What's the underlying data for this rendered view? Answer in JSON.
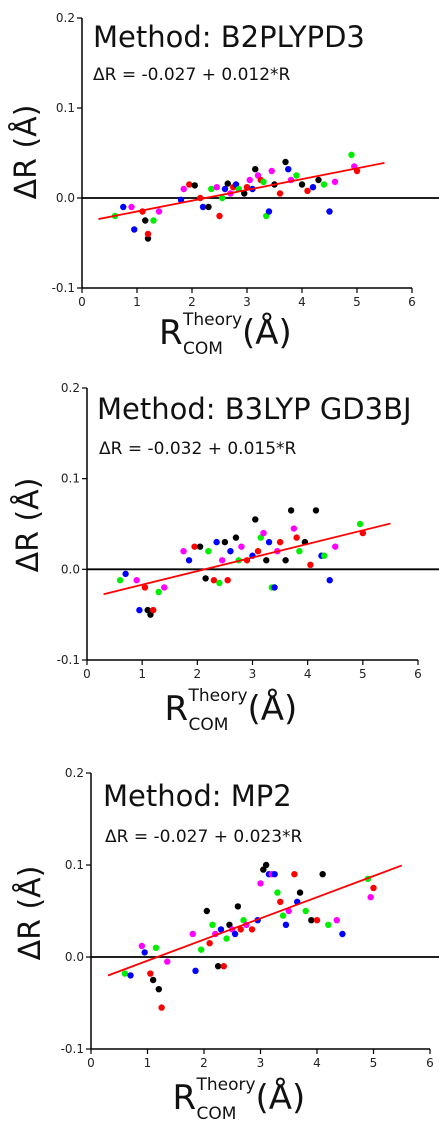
{
  "chart_data": [
    {
      "type": "scatter",
      "title": "Method: B2PLYPD3",
      "equation": "ΔR = -0.027 + 0.012*R",
      "ylabel": "ΔR (Å)",
      "xlabel_main": "R",
      "xlabel_sup": "Theory",
      "xlabel_sub": "COM",
      "xlabel_unit": "(Å)",
      "xlim": [
        0,
        6
      ],
      "ylim": [
        -0.1,
        0.2
      ],
      "xticks": [
        "0",
        "1",
        "2",
        "3",
        "4",
        "5",
        "6"
      ],
      "yticks": [
        "-0.1",
        "0.0",
        "0.1",
        "0.2"
      ],
      "zero_line": 0,
      "fit": {
        "intercept": -0.027,
        "slope": 0.012,
        "x_range": [
          0.3,
          5.5
        ],
        "color": "#ff0000"
      },
      "series_colors": [
        "#000000",
        "#ff0000",
        "#00ee00",
        "#0000ff",
        "#ff00ff"
      ],
      "points": [
        [
          0.6,
          -0.02,
          2
        ],
        [
          0.75,
          -0.01,
          3
        ],
        [
          0.9,
          -0.01,
          4
        ],
        [
          0.95,
          -0.035,
          3
        ],
        [
          1.1,
          -0.015,
          1
        ],
        [
          1.15,
          -0.025,
          0
        ],
        [
          1.2,
          -0.045,
          0
        ],
        [
          1.2,
          -0.04,
          1
        ],
        [
          1.3,
          -0.025,
          2
        ],
        [
          1.4,
          -0.015,
          4
        ],
        [
          1.8,
          -0.002,
          3
        ],
        [
          1.85,
          0.01,
          4
        ],
        [
          1.95,
          0.015,
          1
        ],
        [
          2.05,
          0.014,
          0
        ],
        [
          2.15,
          0.0,
          1
        ],
        [
          2.2,
          -0.01,
          3
        ],
        [
          2.3,
          -0.01,
          0
        ],
        [
          2.35,
          0.01,
          2
        ],
        [
          2.45,
          0.012,
          4
        ],
        [
          2.5,
          -0.02,
          1
        ],
        [
          2.55,
          0.0,
          2
        ],
        [
          2.6,
          0.01,
          3
        ],
        [
          2.65,
          0.016,
          0
        ],
        [
          2.7,
          0.005,
          4
        ],
        [
          2.75,
          0.012,
          1
        ],
        [
          2.8,
          0.015,
          3
        ],
        [
          2.85,
          0.01,
          2
        ],
        [
          2.95,
          0.005,
          0
        ],
        [
          3.0,
          0.012,
          1
        ],
        [
          3.05,
          0.02,
          4
        ],
        [
          3.1,
          0.01,
          3
        ],
        [
          3.15,
          0.032,
          0
        ],
        [
          3.2,
          0.025,
          4
        ],
        [
          3.25,
          0.02,
          1
        ],
        [
          3.3,
          0.018,
          2
        ],
        [
          3.35,
          -0.02,
          2
        ],
        [
          3.4,
          -0.015,
          3
        ],
        [
          3.45,
          0.03,
          4
        ],
        [
          3.5,
          0.015,
          0
        ],
        [
          3.6,
          0.005,
          1
        ],
        [
          3.7,
          0.04,
          0
        ],
        [
          3.75,
          0.032,
          3
        ],
        [
          3.8,
          0.02,
          4
        ],
        [
          3.9,
          0.025,
          2
        ],
        [
          4.0,
          0.015,
          0
        ],
        [
          4.1,
          0.008,
          1
        ],
        [
          4.2,
          0.012,
          3
        ],
        [
          4.3,
          0.02,
          0
        ],
        [
          4.4,
          0.015,
          2
        ],
        [
          4.5,
          -0.015,
          3
        ],
        [
          4.6,
          0.018,
          4
        ],
        [
          4.9,
          0.048,
          2
        ],
        [
          4.95,
          0.035,
          4
        ],
        [
          5.0,
          0.03,
          1
        ]
      ]
    },
    {
      "type": "scatter",
      "title": "Method: B3LYP GD3BJ",
      "equation": "ΔR = -0.032 + 0.015*R",
      "ylabel": "ΔR (Å)",
      "xlabel_main": "R",
      "xlabel_sup": "Theory",
      "xlabel_sub": "COM",
      "xlabel_unit": "(Å)",
      "xlim": [
        0,
        6
      ],
      "ylim": [
        -0.1,
        0.2
      ],
      "xticks": [
        "0",
        "1",
        "2",
        "3",
        "4",
        "5",
        "6"
      ],
      "yticks": [
        "-0.1",
        "0.0",
        "0.1",
        "0.2"
      ],
      "zero_line": 0,
      "fit": {
        "intercept": -0.032,
        "slope": 0.015,
        "x_range": [
          0.3,
          5.5
        ],
        "color": "#ff0000"
      },
      "series_colors": [
        "#000000",
        "#ff0000",
        "#00ee00",
        "#0000ff",
        "#ff00ff"
      ],
      "points": [
        [
          0.6,
          -0.012,
          2
        ],
        [
          0.7,
          -0.005,
          3
        ],
        [
          0.9,
          -0.012,
          4
        ],
        [
          0.95,
          -0.045,
          3
        ],
        [
          1.05,
          -0.02,
          1
        ],
        [
          1.1,
          -0.045,
          0
        ],
        [
          1.15,
          -0.05,
          0
        ],
        [
          1.2,
          -0.045,
          1
        ],
        [
          1.3,
          -0.025,
          2
        ],
        [
          1.4,
          -0.02,
          4
        ],
        [
          1.75,
          0.02,
          4
        ],
        [
          1.85,
          0.01,
          3
        ],
        [
          1.95,
          0.025,
          1
        ],
        [
          2.05,
          0.025,
          0
        ],
        [
          2.15,
          -0.01,
          0
        ],
        [
          2.2,
          0.02,
          2
        ],
        [
          2.3,
          -0.012,
          1
        ],
        [
          2.35,
          0.03,
          3
        ],
        [
          2.4,
          -0.015,
          2
        ],
        [
          2.45,
          0.01,
          4
        ],
        [
          2.5,
          0.03,
          0
        ],
        [
          2.55,
          -0.012,
          1
        ],
        [
          2.6,
          0.02,
          3
        ],
        [
          2.7,
          0.035,
          0
        ],
        [
          2.75,
          0.01,
          2
        ],
        [
          2.8,
          0.025,
          4
        ],
        [
          2.9,
          0.01,
          1
        ],
        [
          3.0,
          0.015,
          3
        ],
        [
          3.05,
          0.055,
          0
        ],
        [
          3.1,
          0.02,
          1
        ],
        [
          3.15,
          0.035,
          2
        ],
        [
          3.2,
          0.04,
          4
        ],
        [
          3.25,
          0.01,
          0
        ],
        [
          3.3,
          0.03,
          3
        ],
        [
          3.35,
          -0.02,
          2
        ],
        [
          3.4,
          -0.02,
          3
        ],
        [
          3.45,
          0.02,
          4
        ],
        [
          3.5,
          0.03,
          1
        ],
        [
          3.6,
          0.01,
          0
        ],
        [
          3.7,
          0.065,
          0
        ],
        [
          3.75,
          0.045,
          4
        ],
        [
          3.8,
          0.035,
          1
        ],
        [
          3.85,
          0.02,
          2
        ],
        [
          3.95,
          0.03,
          0
        ],
        [
          4.05,
          0.005,
          1
        ],
        [
          4.15,
          0.065,
          0
        ],
        [
          4.25,
          0.015,
          3
        ],
        [
          4.3,
          0.015,
          2
        ],
        [
          4.4,
          -0.012,
          3
        ],
        [
          4.5,
          0.025,
          4
        ],
        [
          4.95,
          0.05,
          2
        ],
        [
          5.0,
          0.04,
          1
        ]
      ]
    },
    {
      "type": "scatter",
      "title": "Method: MP2",
      "equation": "ΔR = -0.027 + 0.023*R",
      "ylabel": "ΔR (Å)",
      "xlabel_main": "R",
      "xlabel_sup": "Theory",
      "xlabel_sub": "COM",
      "xlabel_unit": "(Å)",
      "xlim": [
        0,
        6
      ],
      "ylim": [
        -0.1,
        0.2
      ],
      "xticks": [
        "0",
        "1",
        "2",
        "3",
        "4",
        "5",
        "6"
      ],
      "yticks": [
        "-0.1",
        "0.0",
        "0.1",
        "0.2"
      ],
      "zero_line": 0,
      "fit": {
        "intercept": -0.027,
        "slope": 0.023,
        "x_range": [
          0.3,
          5.5
        ],
        "color": "#ff0000"
      },
      "series_colors": [
        "#000000",
        "#ff0000",
        "#00ee00",
        "#0000ff",
        "#ff00ff"
      ],
      "points": [
        [
          0.6,
          -0.018,
          2
        ],
        [
          0.7,
          -0.02,
          3
        ],
        [
          0.9,
          0.012,
          4
        ],
        [
          0.95,
          0.005,
          3
        ],
        [
          1.05,
          -0.018,
          1
        ],
        [
          1.1,
          -0.025,
          0
        ],
        [
          1.15,
          0.01,
          2
        ],
        [
          1.2,
          -0.035,
          0
        ],
        [
          1.25,
          -0.055,
          1
        ],
        [
          1.35,
          -0.005,
          4
        ],
        [
          1.8,
          0.025,
          4
        ],
        [
          1.85,
          -0.015,
          3
        ],
        [
          1.95,
          0.008,
          2
        ],
        [
          2.05,
          0.05,
          0
        ],
        [
          2.1,
          0.015,
          1
        ],
        [
          2.15,
          0.035,
          2
        ],
        [
          2.2,
          0.025,
          4
        ],
        [
          2.25,
          -0.01,
          0
        ],
        [
          2.3,
          0.03,
          3
        ],
        [
          2.35,
          -0.01,
          1
        ],
        [
          2.4,
          0.02,
          2
        ],
        [
          2.45,
          0.035,
          0
        ],
        [
          2.5,
          0.03,
          4
        ],
        [
          2.55,
          0.025,
          3
        ],
        [
          2.6,
          0.055,
          0
        ],
        [
          2.65,
          0.03,
          1
        ],
        [
          2.7,
          0.04,
          2
        ],
        [
          2.75,
          0.035,
          4
        ],
        [
          2.85,
          0.03,
          1
        ],
        [
          2.95,
          0.04,
          3
        ],
        [
          3.0,
          0.08,
          4
        ],
        [
          3.05,
          0.095,
          0
        ],
        [
          3.1,
          0.1,
          0
        ],
        [
          3.15,
          0.09,
          3
        ],
        [
          3.2,
          0.09,
          4
        ],
        [
          3.25,
          0.09,
          3
        ],
        [
          3.3,
          0.07,
          2
        ],
        [
          3.35,
          0.06,
          1
        ],
        [
          3.4,
          0.045,
          2
        ],
        [
          3.45,
          0.035,
          3
        ],
        [
          3.5,
          0.05,
          4
        ],
        [
          3.6,
          0.09,
          1
        ],
        [
          3.65,
          0.06,
          3
        ],
        [
          3.7,
          0.07,
          0
        ],
        [
          3.8,
          0.05,
          2
        ],
        [
          3.9,
          0.04,
          0
        ],
        [
          4.0,
          0.04,
          1
        ],
        [
          4.1,
          0.09,
          0
        ],
        [
          4.2,
          0.035,
          2
        ],
        [
          4.35,
          0.04,
          4
        ],
        [
          4.45,
          0.025,
          3
        ],
        [
          4.9,
          0.085,
          2
        ],
        [
          4.95,
          0.065,
          4
        ],
        [
          5.0,
          0.075,
          1
        ]
      ]
    }
  ]
}
